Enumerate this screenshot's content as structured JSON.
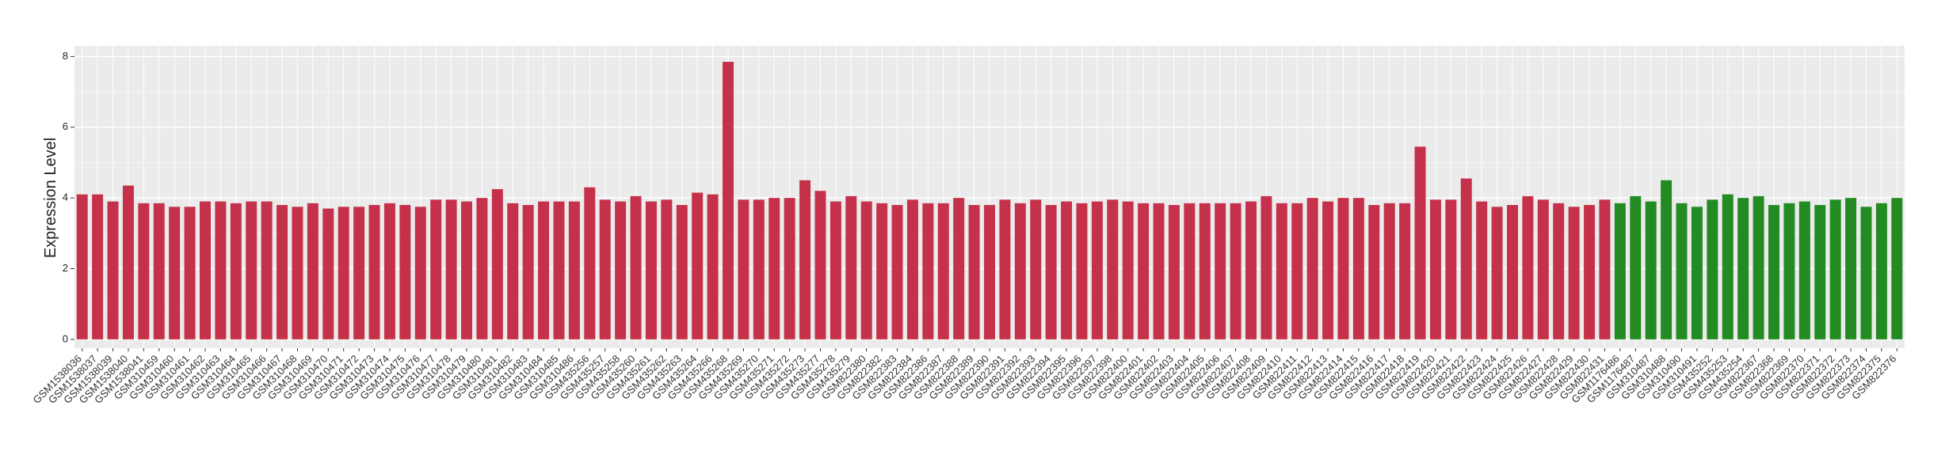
{
  "chart_data": {
    "type": "bar",
    "y_label": "Expression Level",
    "categories": [
      "GSM1538036",
      "GSM1538037",
      "GSM1538039",
      "GSM1538040",
      "GSM1538041",
      "GSM310459",
      "GSM310460",
      "GSM310461",
      "GSM310462",
      "GSM310463",
      "GSM310464",
      "GSM310465",
      "GSM310466",
      "GSM310467",
      "GSM310468",
      "GSM310469",
      "GSM310470",
      "GSM310471",
      "GSM310472",
      "GSM310473",
      "GSM310474",
      "GSM310475",
      "GSM310476",
      "GSM310477",
      "GSM310478",
      "GSM310479",
      "GSM310480",
      "GSM310481",
      "GSM310482",
      "GSM310483",
      "GSM310484",
      "GSM310485",
      "GSM310486",
      "GSM435256",
      "GSM435257",
      "GSM435258",
      "GSM435260",
      "GSM435261",
      "GSM435262",
      "GSM435263",
      "GSM435264",
      "GSM435266",
      "GSM435268",
      "GSM435269",
      "GSM435270",
      "GSM435271",
      "GSM435272",
      "GSM435273",
      "GSM435277",
      "GSM435278",
      "GSM435279",
      "GSM822380",
      "GSM822382",
      "GSM822383",
      "GSM822384",
      "GSM822386",
      "GSM822387",
      "GSM822388",
      "GSM822389",
      "GSM822390",
      "GSM822391",
      "GSM822392",
      "GSM822393",
      "GSM822394",
      "GSM822395",
      "GSM822396",
      "GSM822397",
      "GSM822398",
      "GSM822400",
      "GSM822401",
      "GSM822402",
      "GSM822403",
      "GSM822404",
      "GSM822405",
      "GSM822406",
      "GSM822407",
      "GSM822408",
      "GSM822409",
      "GSM822410",
      "GSM822411",
      "GSM822412",
      "GSM822413",
      "GSM822414",
      "GSM822415",
      "GSM822416",
      "GSM822417",
      "GSM822418",
      "GSM822419",
      "GSM822420",
      "GSM822421",
      "GSM822422",
      "GSM822423",
      "GSM822424",
      "GSM822425",
      "GSM822426",
      "GSM822427",
      "GSM822428",
      "GSM822429",
      "GSM822430",
      "GSM822431",
      "GSM1176486",
      "GSM1176487",
      "GSM310487",
      "GSM310488",
      "GSM310490",
      "GSM310491",
      "GSM435252",
      "GSM435253",
      "GSM435254",
      "GSM822367",
      "GSM822368",
      "GSM822369",
      "GSM822370",
      "GSM822371",
      "GSM822372",
      "GSM822373",
      "GSM822374",
      "GSM822375",
      "GSM822376"
    ],
    "values": [
      4.1,
      4.1,
      3.9,
      4.35,
      3.85,
      3.85,
      3.75,
      3.75,
      3.9,
      3.9,
      3.85,
      3.9,
      3.9,
      3.8,
      3.75,
      3.85,
      3.7,
      3.75,
      3.75,
      3.8,
      3.85,
      3.8,
      3.75,
      3.95,
      3.95,
      3.9,
      4.0,
      4.25,
      3.85,
      3.8,
      3.9,
      3.9,
      3.9,
      4.3,
      3.95,
      3.9,
      4.05,
      3.9,
      3.95,
      3.8,
      4.15,
      4.1,
      7.85,
      3.95,
      3.95,
      4.0,
      4.0,
      4.5,
      4.2,
      3.9,
      4.05,
      3.9,
      3.85,
      3.8,
      3.95,
      3.85,
      3.85,
      4.0,
      3.8,
      3.8,
      3.95,
      3.85,
      3.95,
      3.8,
      3.9,
      3.85,
      3.9,
      3.95,
      3.9,
      3.85,
      3.85,
      3.8,
      3.85,
      3.85,
      3.85,
      3.85,
      3.9,
      4.05,
      3.85,
      3.85,
      4.0,
      3.9,
      4.0,
      4.0,
      3.8,
      3.85,
      3.85,
      5.45,
      3.95,
      3.95,
      4.55,
      3.9,
      3.75,
      3.8,
      4.05,
      3.95,
      3.85,
      3.75,
      3.8,
      3.95,
      3.85,
      4.05,
      3.9,
      4.5,
      3.85,
      3.75,
      3.95,
      4.1,
      4.0,
      4.05,
      3.8,
      3.85,
      3.9,
      3.8,
      3.95,
      4.0,
      3.75,
      3.85,
      4.0
    ],
    "colors": [
      "#c5314a",
      "#c5314a",
      "#c5314a",
      "#c5314a",
      "#c5314a",
      "#c5314a",
      "#c5314a",
      "#c5314a",
      "#c5314a",
      "#c5314a",
      "#c5314a",
      "#c5314a",
      "#c5314a",
      "#c5314a",
      "#c5314a",
      "#c5314a",
      "#c5314a",
      "#c5314a",
      "#c5314a",
      "#c5314a",
      "#c5314a",
      "#c5314a",
      "#c5314a",
      "#c5314a",
      "#c5314a",
      "#c5314a",
      "#c5314a",
      "#c5314a",
      "#c5314a",
      "#c5314a",
      "#c5314a",
      "#c5314a",
      "#c5314a",
      "#c5314a",
      "#c5314a",
      "#c5314a",
      "#c5314a",
      "#c5314a",
      "#c5314a",
      "#c5314a",
      "#c5314a",
      "#c5314a",
      "#c5314a",
      "#c5314a",
      "#c5314a",
      "#c5314a",
      "#c5314a",
      "#c5314a",
      "#c5314a",
      "#c5314a",
      "#c5314a",
      "#c5314a",
      "#c5314a",
      "#c5314a",
      "#c5314a",
      "#c5314a",
      "#c5314a",
      "#c5314a",
      "#c5314a",
      "#c5314a",
      "#c5314a",
      "#c5314a",
      "#c5314a",
      "#c5314a",
      "#c5314a",
      "#c5314a",
      "#c5314a",
      "#c5314a",
      "#c5314a",
      "#c5314a",
      "#c5314a",
      "#c5314a",
      "#c5314a",
      "#c5314a",
      "#c5314a",
      "#c5314a",
      "#c5314a",
      "#c5314a",
      "#c5314a",
      "#c5314a",
      "#c5314a",
      "#c5314a",
      "#c5314a",
      "#c5314a",
      "#c5314a",
      "#c5314a",
      "#c5314a",
      "#c5314a",
      "#c5314a",
      "#c5314a",
      "#c5314a",
      "#c5314a",
      "#c5314a",
      "#c5314a",
      "#c5314a",
      "#c5314a",
      "#c5314a",
      "#c5314a",
      "#c5314a",
      "#c5314a",
      "#228b22",
      "#228b22",
      "#228b22",
      "#228b22",
      "#228b22",
      "#228b22",
      "#228b22",
      "#228b22",
      "#228b22",
      "#228b22",
      "#228b22",
      "#228b22",
      "#228b22",
      "#228b22",
      "#228b22",
      "#228b22",
      "#228b22",
      "#228b22",
      "#228b22"
    ],
    "ylim": [
      -0.25,
      8.3
    ],
    "yticks": [
      0,
      2,
      4,
      6,
      8
    ],
    "grid": true
  }
}
